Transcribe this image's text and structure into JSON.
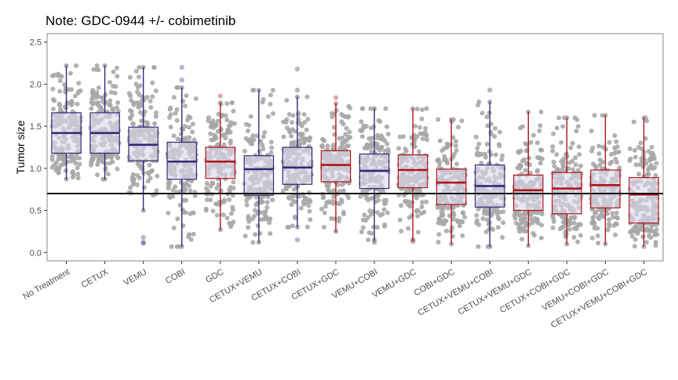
{
  "chart_data": {
    "type": "box",
    "title": "Note: GDC-0944 +/- cobimetinib",
    "ylabel": "Tumor size",
    "xlabel": "",
    "ylim": [
      -0.1,
      2.6
    ],
    "yticks": [
      "0.0",
      "0.5",
      "1.0",
      "1.5",
      "2.0",
      "2.5"
    ],
    "reference_line": 0.7,
    "grid": false,
    "colors": {
      "blue": "#2e2a7a",
      "red": "#b0121a",
      "box_fill": "#dcd9ea",
      "points": "#a6a6a6",
      "panel_border": "#8a8a8a",
      "reference": "#000000"
    },
    "categories": [
      "No Treatment",
      "CETUX",
      "VEMU",
      "COBI",
      "GDC",
      "CETUX+VEMU",
      "CETUX+COBI",
      "CETUX+GDC",
      "VEMU+COBI",
      "VEMU+GDC",
      "COBI+GDC",
      "CETUX+VEMU+COBI",
      "CETUX+VEMU+GDC",
      "CETUX+COBI+GDC",
      "VEMU+COBI+GDC",
      "CETUX+VEMU+COBI+GDC"
    ],
    "boxes": [
      {
        "q1": 1.18,
        "median": 1.42,
        "q3": 1.66,
        "whisker_low": 0.87,
        "whisker_high": 2.22,
        "color": "blue"
      },
      {
        "q1": 1.18,
        "median": 1.42,
        "q3": 1.66,
        "whisker_low": 0.87,
        "whisker_high": 2.22,
        "color": "blue"
      },
      {
        "q1": 1.09,
        "median": 1.28,
        "q3": 1.49,
        "whisker_low": 0.5,
        "whisker_high": 2.2,
        "color": "blue",
        "outliers": [
          0.18,
          0.12,
          0.11
        ]
      },
      {
        "q1": 0.87,
        "median": 1.08,
        "q3": 1.31,
        "whisker_low": 0.07,
        "whisker_high": 1.96,
        "color": "blue",
        "outliers": [
          2.2,
          2.05
        ]
      },
      {
        "q1": 0.88,
        "median": 1.08,
        "q3": 1.25,
        "whisker_low": 0.27,
        "whisker_high": 1.78,
        "color": "red",
        "outliers": [
          1.86
        ]
      },
      {
        "q1": 0.68,
        "median": 0.99,
        "q3": 1.15,
        "whisker_low": 0.12,
        "whisker_high": 1.93,
        "color": "blue"
      },
      {
        "q1": 0.81,
        "median": 1.01,
        "q3": 1.25,
        "whisker_low": 0.3,
        "whisker_high": 1.85,
        "color": "blue",
        "outliers": [
          2.18,
          1.93,
          0.15
        ]
      },
      {
        "q1": 0.84,
        "median": 1.04,
        "q3": 1.21,
        "whisker_low": 0.25,
        "whisker_high": 1.77,
        "color": "red",
        "outliers": [
          1.84
        ]
      },
      {
        "q1": 0.76,
        "median": 0.97,
        "q3": 1.17,
        "whisker_low": 0.15,
        "whisker_high": 1.71,
        "color": "blue",
        "outliers": [
          0.12
        ]
      },
      {
        "q1": 0.77,
        "median": 0.98,
        "q3": 1.16,
        "whisker_low": 0.15,
        "whisker_high": 1.71,
        "color": "red",
        "outliers": [
          0.13
        ]
      },
      {
        "q1": 0.57,
        "median": 0.83,
        "q3": 0.99,
        "whisker_low": 0.1,
        "whisker_high": 1.58,
        "color": "red"
      },
      {
        "q1": 0.54,
        "median": 0.79,
        "q3": 1.04,
        "whisker_low": 0.07,
        "whisker_high": 1.79,
        "color": "blue",
        "outliers": [
          1.93
        ]
      },
      {
        "q1": 0.5,
        "median": 0.74,
        "q3": 0.92,
        "whisker_low": 0.08,
        "whisker_high": 1.67,
        "color": "red"
      },
      {
        "q1": 0.46,
        "median": 0.76,
        "q3": 0.95,
        "whisker_low": 0.1,
        "whisker_high": 1.6,
        "color": "red"
      },
      {
        "q1": 0.53,
        "median": 0.8,
        "q3": 0.98,
        "whisker_low": 0.1,
        "whisker_high": 1.63,
        "color": "red"
      },
      {
        "q1": 0.35,
        "median": 0.69,
        "q3": 0.89,
        "whisker_low": 0.07,
        "whisker_high": 1.6,
        "color": "red"
      }
    ]
  }
}
